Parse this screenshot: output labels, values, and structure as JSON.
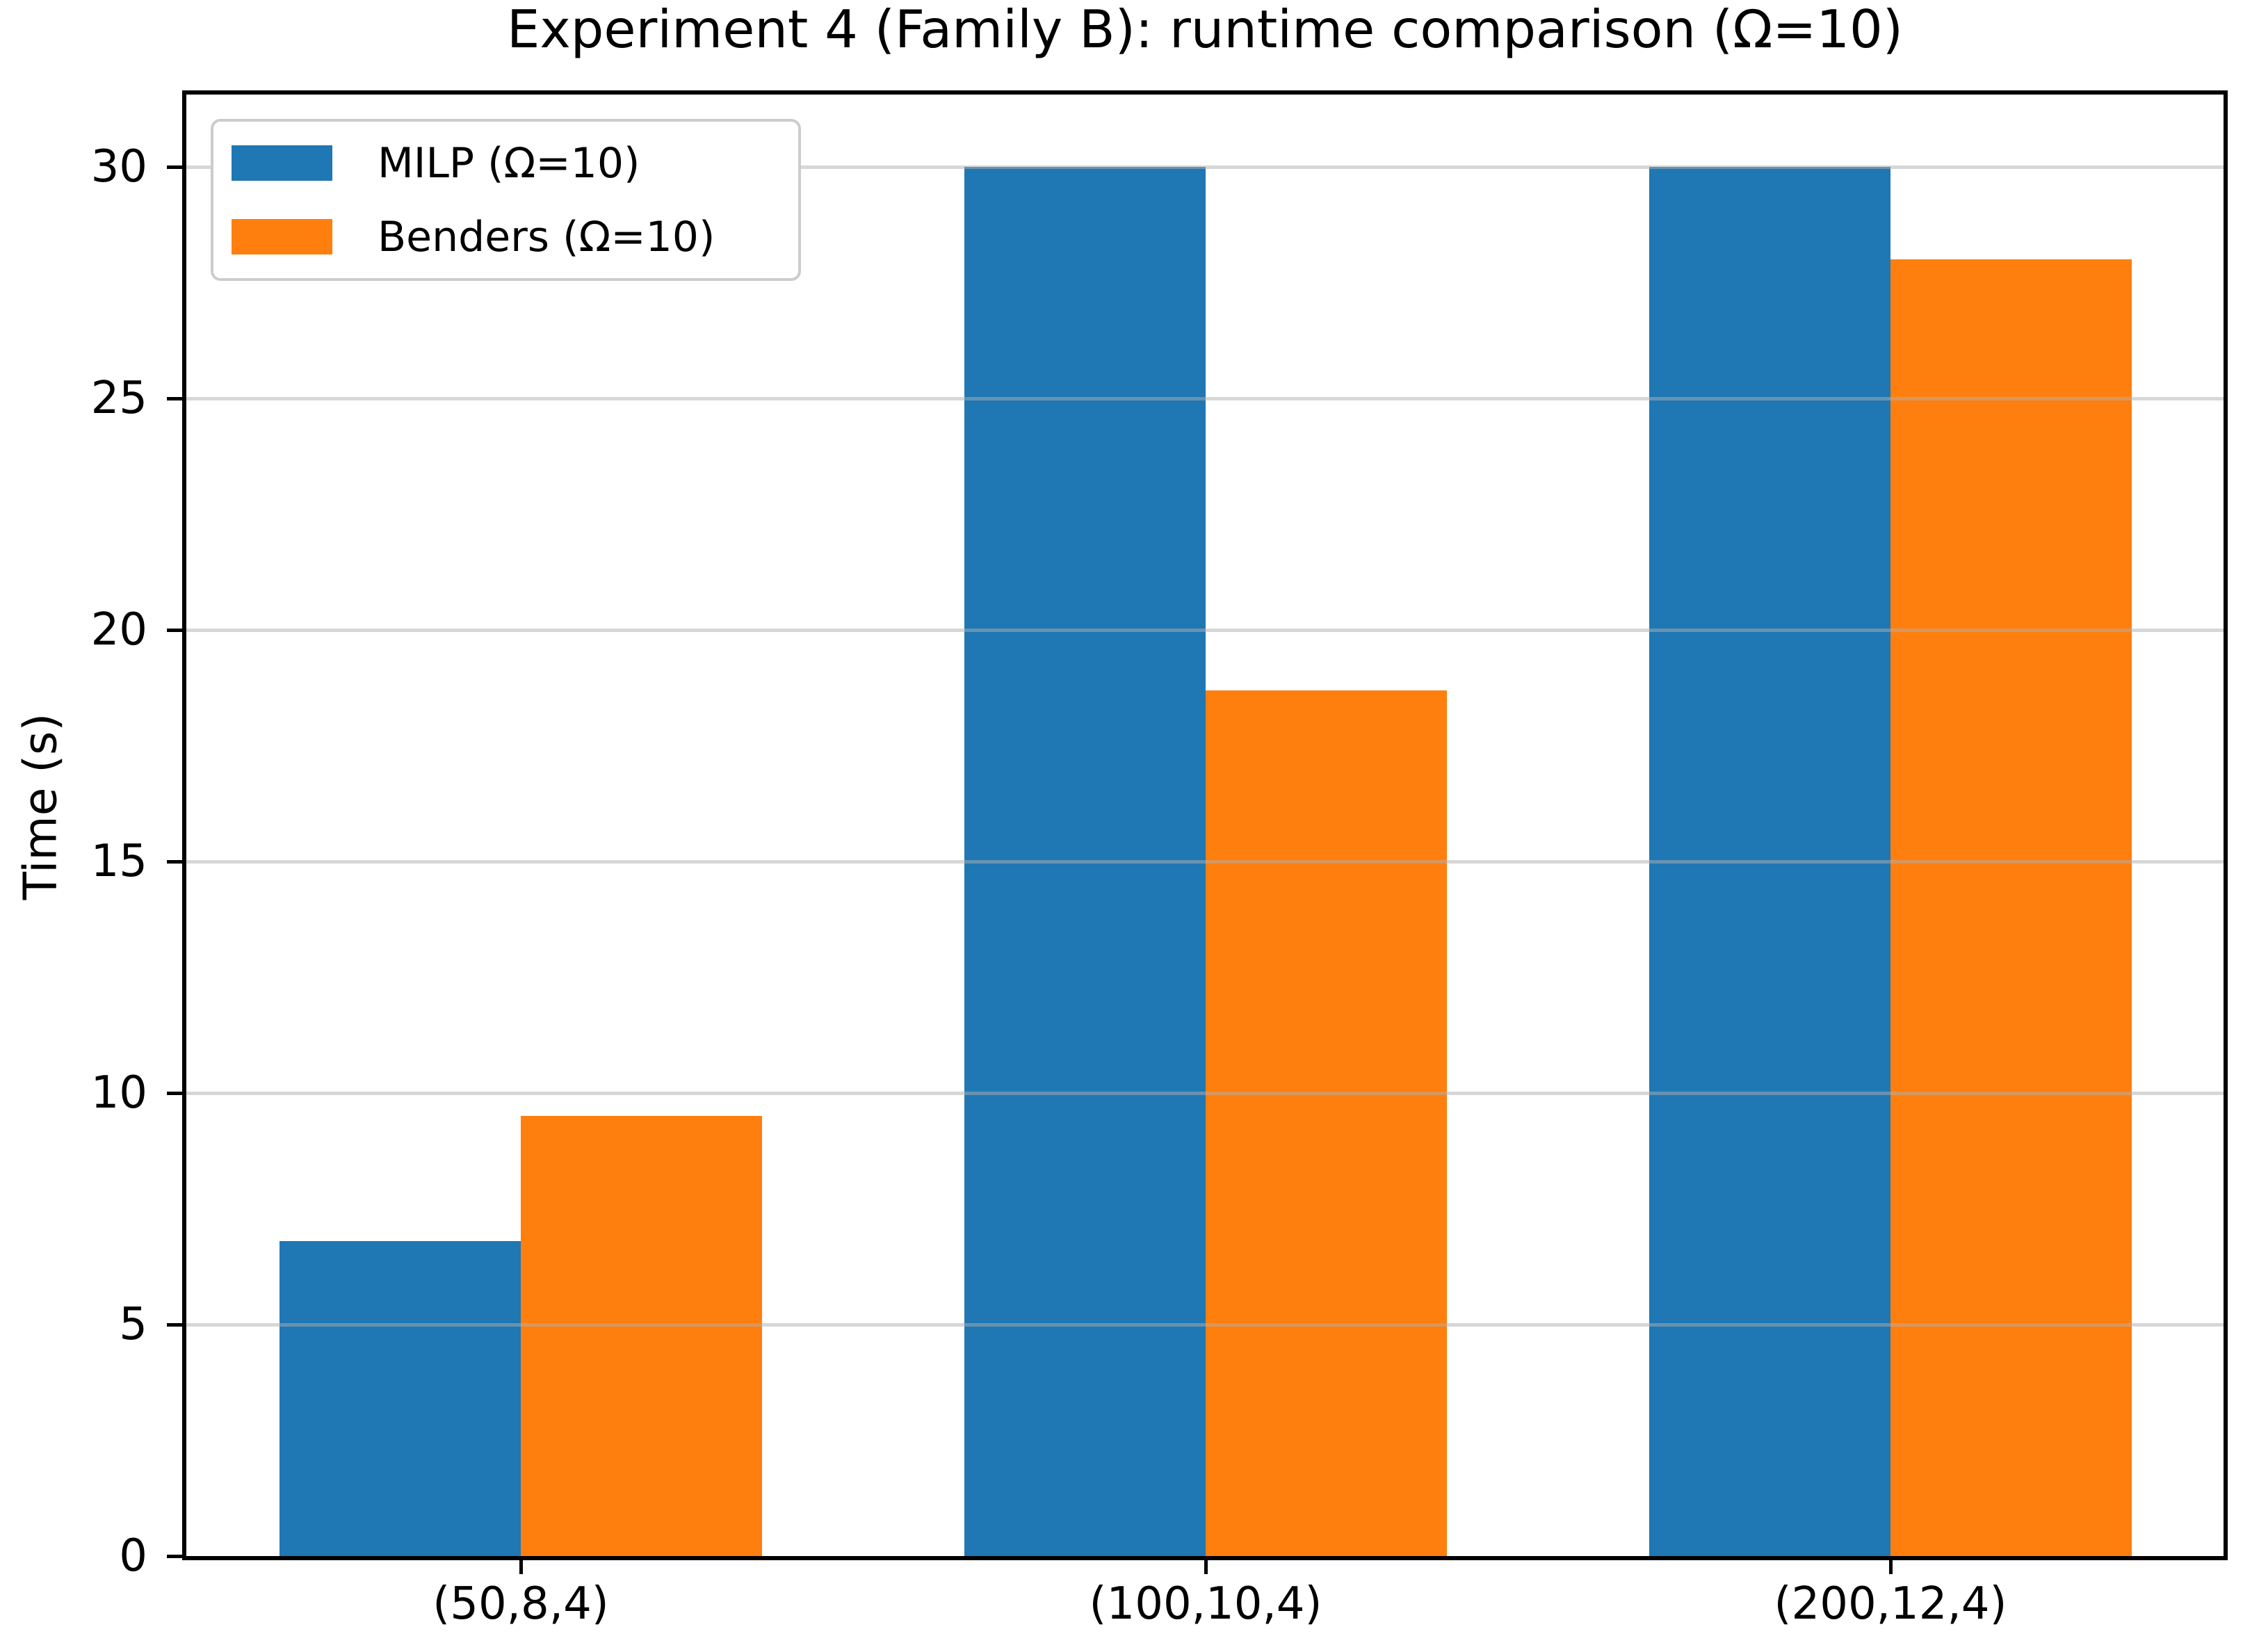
{
  "title": "Experiment 4 (Family B): runtime comparison (Ω=10)",
  "y_axis_label": "Time (s)",
  "chart_data": {
    "type": "bar",
    "title": "Experiment 4 (Family B): runtime comparison (Ω=10)",
    "xlabel": "",
    "ylabel": "Time (s)",
    "categories": [
      "(50,8,4)",
      "(100,10,4)",
      "(200,12,4)"
    ],
    "series": [
      {
        "name": "MILP (Ω=10)",
        "color": "#1f77b4",
        "values": [
          6.8,
          30.0,
          30.0
        ]
      },
      {
        "name": "Benders (Ω=10)",
        "color": "#ff7f0e",
        "values": [
          9.5,
          18.7,
          28.0
        ]
      }
    ],
    "ylim": [
      0,
      31.5
    ],
    "yticks": [
      0,
      5,
      10,
      15,
      20,
      25,
      30
    ],
    "grid": true,
    "grid_color": "#b0b0b0",
    "background_color": "#ffffff",
    "legend_position": "upper left"
  }
}
